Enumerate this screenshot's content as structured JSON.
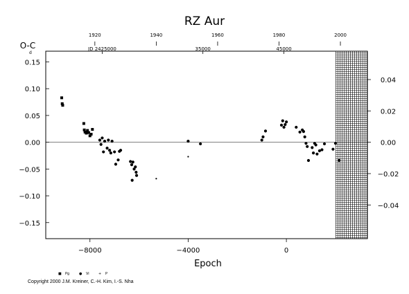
{
  "chart_data": {
    "type": "scatter",
    "title": "RZ Aur",
    "ylabel": "O-C",
    "yunit_mark": "d",
    "xlabel": "Epoch",
    "xlim": [
      -9800,
      3300
    ],
    "ylim": [
      -0.18,
      0.17
    ],
    "right_ylim": [
      -0.0615,
      0.0581
    ],
    "grid": false,
    "zero_line": true,
    "legend_position": "bottom-left",
    "x_ticks": [
      -8000,
      -4000,
      0
    ],
    "x_tick_labels": [
      "−8000",
      "−4000",
      "0"
    ],
    "y_ticks": [
      -0.15,
      -0.1,
      -0.05,
      0.0,
      0.05,
      0.1,
      0.15
    ],
    "y_tick_labels": [
      "−0.15",
      "−0.10",
      "−0.05",
      "0.00",
      "0.05",
      "0.10",
      "0.15"
    ],
    "right_ticks": [
      -0.04,
      -0.02,
      0.0,
      0.02,
      0.04
    ],
    "right_tick_labels": [
      "−0.04",
      "−0.02",
      "0.00",
      "0.02",
      "0.04"
    ],
    "top_year_ticks": [
      {
        "epoch": -7800,
        "label": "1920"
      },
      {
        "epoch": -5300,
        "label": "1940"
      },
      {
        "epoch": -2800,
        "label": "1960"
      },
      {
        "epoch": -300,
        "label": "1980"
      },
      {
        "epoch": 2200,
        "label": "2000"
      }
    ],
    "top_jd_labels": [
      {
        "epoch": -7500,
        "label": "JD 2425000"
      },
      {
        "epoch": -3400,
        "label": "35000"
      },
      {
        "epoch": -100,
        "label": "45000"
      }
    ],
    "hatched_region_x": [
      2000,
      3300
    ],
    "series": [
      {
        "name": "Pg",
        "marker": "square",
        "points": [
          [
            -9150,
            0.083
          ],
          [
            -9130,
            0.072
          ],
          [
            -9110,
            0.069
          ],
          [
            -8250,
            0.035
          ],
          [
            -8230,
            0.023
          ],
          [
            -8200,
            0.019
          ],
          [
            -8150,
            0.017
          ],
          [
            -8100,
            0.022
          ],
          [
            -8050,
            0.018
          ],
          [
            -8000,
            0.012
          ],
          [
            -7950,
            0.015
          ],
          [
            -7900,
            0.024
          ]
        ]
      },
      {
        "name": "Vi",
        "marker": "dot",
        "points": [
          [
            -7600,
            0.004
          ],
          [
            -7550,
            -0.004
          ],
          [
            -7500,
            0.008
          ],
          [
            -7450,
            -0.018
          ],
          [
            -7400,
            0.002
          ],
          [
            -7300,
            -0.011
          ],
          [
            -7250,
            0.004
          ],
          [
            -7200,
            -0.015
          ],
          [
            -7150,
            -0.02
          ],
          [
            -7100,
            0.002
          ],
          [
            -7000,
            -0.018
          ],
          [
            -6950,
            -0.041
          ],
          [
            -6850,
            -0.033
          ],
          [
            -6800,
            -0.017
          ],
          [
            -6750,
            -0.015
          ],
          [
            -6350,
            -0.036
          ],
          [
            -6300,
            -0.042
          ],
          [
            -6280,
            -0.071
          ],
          [
            -6250,
            -0.037
          ],
          [
            -6200,
            -0.05
          ],
          [
            -6150,
            -0.046
          ],
          [
            -6120,
            -0.056
          ],
          [
            -6100,
            -0.062
          ],
          [
            -4000,
            0.002
          ],
          [
            -3500,
            -0.003
          ],
          [
            -1000,
            0.004
          ],
          [
            -950,
            0.01
          ],
          [
            -850,
            0.021
          ],
          [
            -200,
            0.032
          ],
          [
            -150,
            0.04
          ],
          [
            -100,
            0.028
          ],
          [
            -50,
            0.033
          ],
          [
            0,
            0.038
          ],
          [
            400,
            0.028
          ],
          [
            550,
            0.019
          ],
          [
            650,
            0.023
          ],
          [
            700,
            0.02
          ],
          [
            750,
            0.01
          ],
          [
            800,
            -0.002
          ],
          [
            850,
            -0.008
          ],
          [
            900,
            -0.034
          ],
          [
            1050,
            -0.01
          ],
          [
            1100,
            -0.02
          ],
          [
            1150,
            -0.002
          ],
          [
            1200,
            -0.005
          ],
          [
            1250,
            -0.022
          ],
          [
            1350,
            -0.016
          ],
          [
            1450,
            -0.014
          ],
          [
            1550,
            -0.003
          ],
          [
            1900,
            -0.013
          ],
          [
            2000,
            -0.002
          ],
          [
            2150,
            -0.034
          ]
        ]
      },
      {
        "name": "P",
        "marker": "small-dot",
        "points": [
          [
            -5300,
            -0.068
          ],
          [
            -4000,
            -0.027
          ]
        ]
      }
    ]
  },
  "legend": [
    {
      "label": "Pg",
      "symbol": "■"
    },
    {
      "label": "Vi",
      "symbol": "●"
    },
    {
      "label": "P",
      "symbol": "+"
    }
  ],
  "copyright": "Copyright 2000 J.M. Kreiner, C.-H. Kim, I.-S. Nha"
}
